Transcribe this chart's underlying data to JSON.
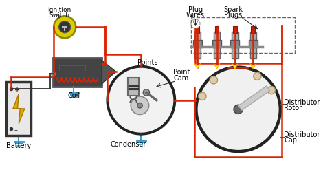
{
  "bg_color": "#ffffff",
  "wire_color": "#dd2200",
  "wire_lw": 1.8,
  "black_lw": 1.3,
  "ground_color": "#3399cc",
  "label_color": "#000000",
  "labels": {
    "ignition": [
      "Ignition",
      "Switch"
    ],
    "coil": "Coil",
    "battery": "Battery",
    "points": "Points",
    "point_cam": [
      "Point",
      "Cam"
    ],
    "condenser": "Condenser",
    "plug_wires": [
      "Plug",
      "Wires"
    ],
    "spark_plugs": [
      "Spark",
      "Plugs"
    ],
    "dist_rotor": [
      "Distributor",
      "Rotor"
    ],
    "dist_cap": [
      "Distributor",
      "Cap"
    ]
  }
}
